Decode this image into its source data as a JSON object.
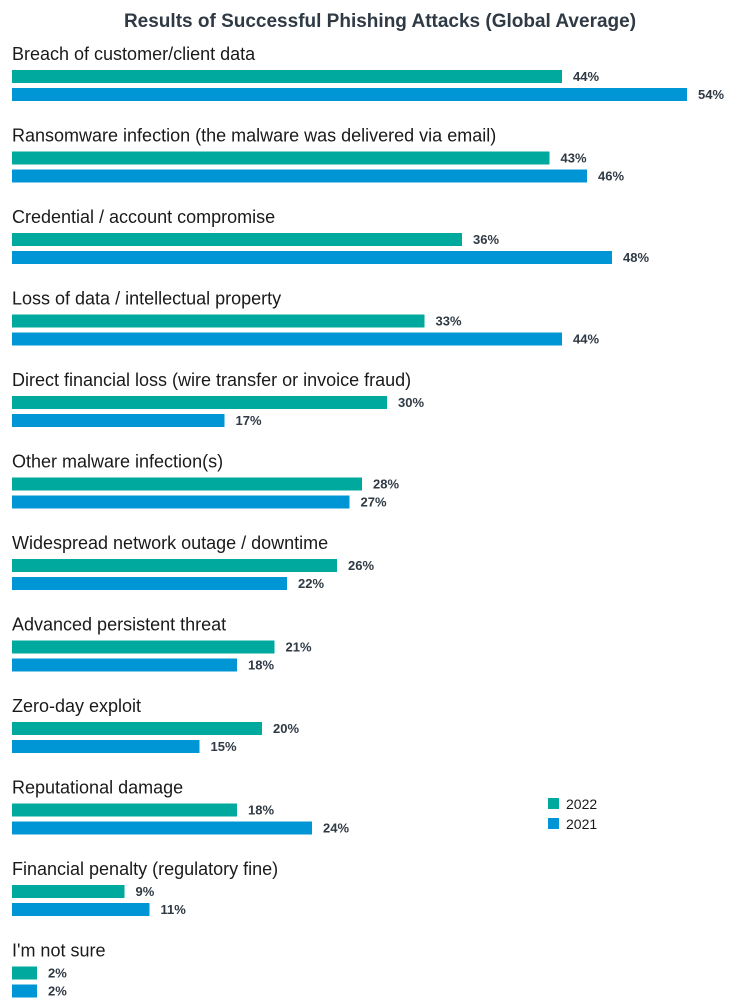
{
  "chart_data": {
    "type": "bar",
    "orientation": "horizontal",
    "title": "Results of Successful Phishing Attacks (Global Average)",
    "xlabel": "",
    "ylabel": "",
    "value_suffix": "%",
    "xlim": [
      0,
      54
    ],
    "grid": false,
    "legend_position": "right",
    "categories": [
      "Breach of customer/client data",
      "Ransomware infection (the malware was delivered via email)",
      "Credential / account compromise",
      "Loss of data / intellectual property",
      "Direct financial loss (wire transfer or invoice fraud)",
      "Other malware infection(s)",
      "Widespread network outage / downtime",
      "Advanced persistent threat",
      "Zero-day exploit",
      "Reputational damage",
      "Financial penalty (regulatory fine)",
      "I'm not sure"
    ],
    "series": [
      {
        "name": "2022",
        "color": "#00a99d",
        "values": [
          44,
          43,
          36,
          33,
          30,
          28,
          26,
          21,
          20,
          18,
          9,
          2
        ]
      },
      {
        "name": "2021",
        "color": "#0096d6",
        "values": [
          54,
          46,
          48,
          44,
          17,
          27,
          22,
          18,
          15,
          24,
          11,
          2
        ]
      }
    ]
  }
}
